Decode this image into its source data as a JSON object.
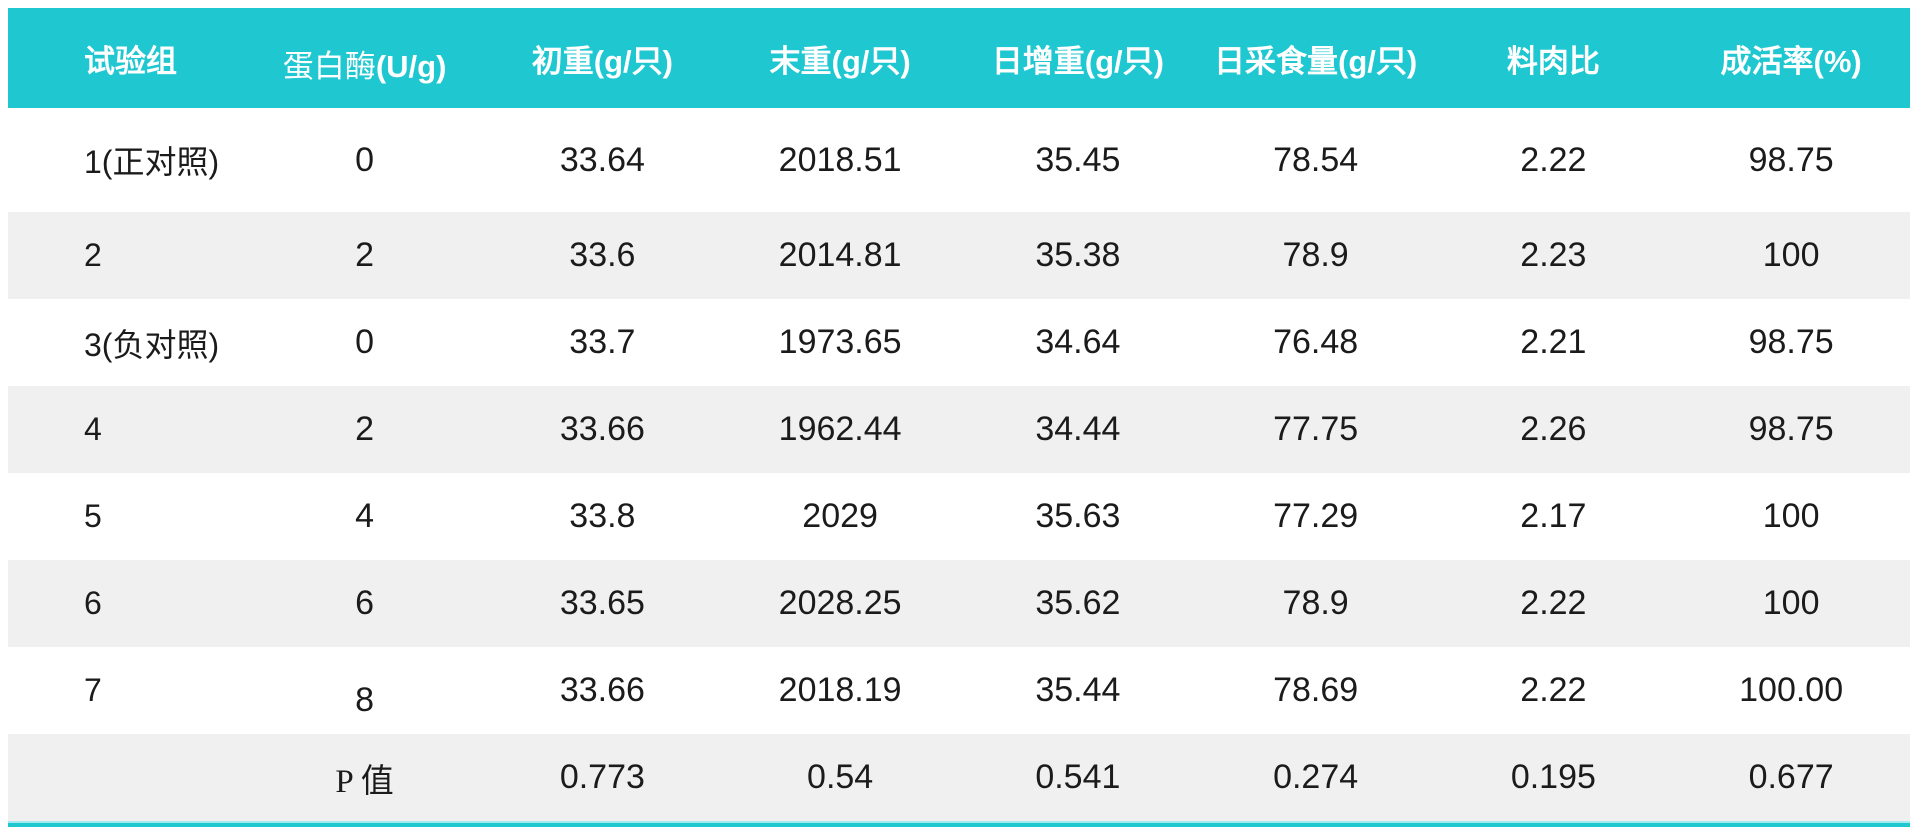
{
  "colors": {
    "header_teal": "#1fc7d1",
    "stripe_gray": "#f0f0f1",
    "text_ink": "#1b1b1b",
    "header_text": "#ffffff"
  },
  "table": {
    "columns": [
      {
        "name": "试验组",
        "unit": ""
      },
      {
        "name": "蛋白酶",
        "unit": "(U/g)"
      },
      {
        "name": "初重",
        "unit": "(g/只)"
      },
      {
        "name": "末重",
        "unit": "(g/只)"
      },
      {
        "name": "日增重",
        "unit": "(g/只)"
      },
      {
        "name": "日采食量",
        "unit": "(g/只)"
      },
      {
        "name": "料肉比",
        "unit": ""
      },
      {
        "name": "成活率",
        "unit": "(%)"
      }
    ],
    "rows": [
      [
        "1(正对照)",
        "0",
        "33.64",
        "2018.51",
        "35.45",
        "78.54",
        "2.22",
        "98.75"
      ],
      [
        "2",
        "2",
        "33.6",
        "2014.81",
        "35.38",
        "78.9",
        "2.23",
        "100"
      ],
      [
        "3(负对照)",
        "0",
        "33.7",
        "1973.65",
        "34.64",
        "76.48",
        "2.21",
        "98.75"
      ],
      [
        "4",
        "2",
        "33.66",
        "1962.44",
        "34.44",
        "77.75",
        "2.26",
        "98.75"
      ],
      [
        "5",
        "4",
        "33.8",
        "2029",
        "35.63",
        "77.29",
        "2.17",
        "100"
      ],
      [
        "6",
        "6",
        "33.65",
        "2028.25",
        "35.62",
        "78.9",
        "2.22",
        "100"
      ],
      [
        "7",
        "8",
        "33.66",
        "2018.19",
        "35.44",
        "78.69",
        "2.22",
        "100.00"
      ],
      [
        "",
        "P 值",
        "0.773",
        "0.54",
        "0.541",
        "0.274",
        "0.195",
        "0.677"
      ]
    ]
  }
}
